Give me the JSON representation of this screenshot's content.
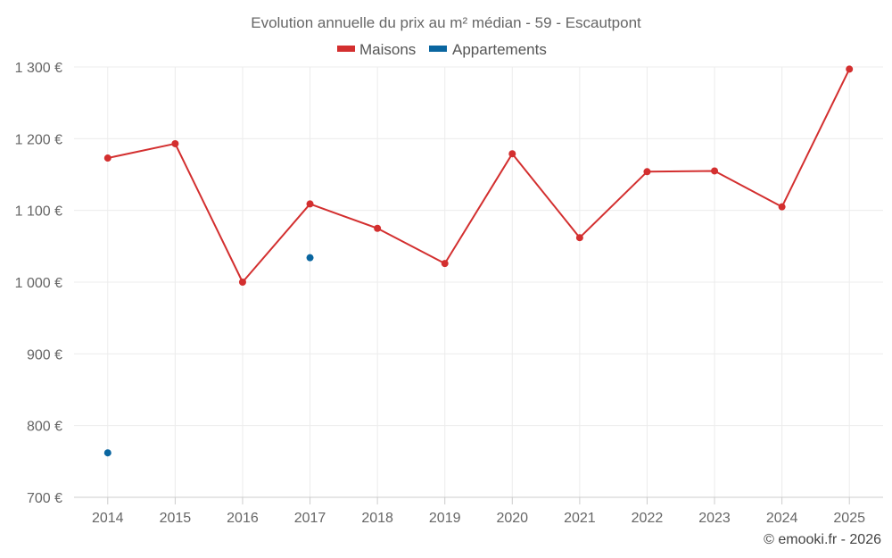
{
  "chart_data": {
    "type": "line",
    "title": "Evolution annuelle du prix au m² médian - 59 - Escautpont",
    "categories": [
      "2014",
      "2015",
      "2016",
      "2017",
      "2018",
      "2019",
      "2020",
      "2021",
      "2022",
      "2023",
      "2024",
      "2025"
    ],
    "series": [
      {
        "name": "Maisons",
        "color": "#d32f2f",
        "values": [
          1173,
          1193,
          1000,
          1109,
          1075,
          1026,
          1179,
          1062,
          1154,
          1155,
          1105,
          1297
        ]
      },
      {
        "name": "Appartements",
        "color": "#0a66a0",
        "values": [
          762,
          null,
          null,
          1034,
          null,
          null,
          null,
          null,
          null,
          null,
          null,
          null
        ]
      }
    ],
    "ylim": [
      700,
      1300
    ],
    "yticks": [
      700,
      800,
      900,
      1000,
      1100,
      1200,
      1300
    ],
    "ytick_labels": [
      "700 €",
      "800 €",
      "900 €",
      "1 000 €",
      "1 100 €",
      "1 200 €",
      "1 300 €"
    ],
    "grid": true,
    "legend_position": "top-center"
  },
  "credit": "© emooki.fr - 2026"
}
